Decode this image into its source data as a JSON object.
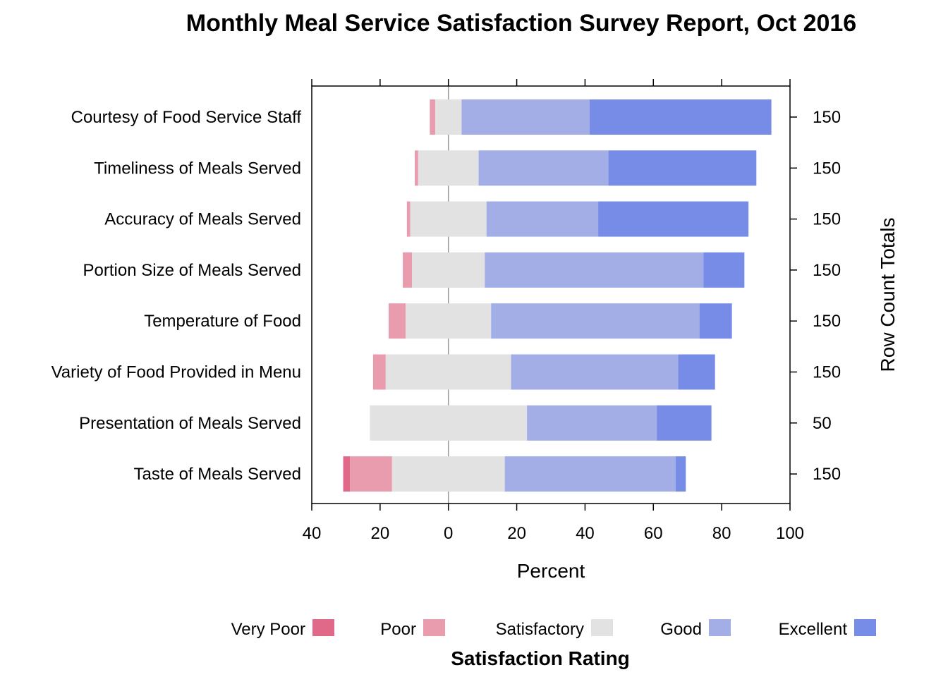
{
  "chart_data": {
    "type": "bar",
    "subtype": "diverging-stacked-horizontal",
    "title": "Monthly Meal Service Satisfaction Survey Report, Oct 2016",
    "xlabel": "Percent",
    "right_axis_label": "Row Count Totals",
    "xlim": [
      -40,
      100
    ],
    "x_ticks": [
      -40,
      -20,
      0,
      20,
      40,
      60,
      80,
      100
    ],
    "x_tick_labels": [
      "40",
      "20",
      "0",
      "20",
      "40",
      "60",
      "80",
      "100"
    ],
    "legend_title": "Satisfaction Rating",
    "legend_position": "bottom",
    "levels": [
      "Very Poor",
      "Poor",
      "Satisfactory",
      "Good",
      "Excellent"
    ],
    "colors": {
      "Very Poor": "#E0698A",
      "Poor": "#E89CAE",
      "Satisfactory": "#E2E2E2",
      "Good": "#A2AEE5",
      "Excellent": "#778CE6",
      "zero_line": "#999999"
    },
    "categories": [
      "Courtesy of Food Service Staff",
      "Timeliness of Meals Served",
      "Accuracy of Meals Served",
      "Portion Size of Meals Served",
      "Temperature of Food",
      "Variety of Food Provided in Menu",
      "Presentation of Meals Served",
      "Taste of Meals Served"
    ],
    "row_totals": [
      "150",
      "150",
      "150",
      "150",
      "150",
      "150",
      "50",
      "150"
    ],
    "series": [
      {
        "name": "Very Poor",
        "values": [
          0.0,
          0.0,
          0.0,
          0.0,
          0.0,
          0.0,
          0.0,
          2.0
        ]
      },
      {
        "name": "Poor",
        "values": [
          1.6,
          1.0,
          1.0,
          2.7,
          5.0,
          3.7,
          0.0,
          12.3
        ]
      },
      {
        "name": "Satisfactory",
        "values": [
          7.7,
          17.7,
          22.3,
          21.3,
          25.0,
          36.7,
          46.0,
          33.0
        ]
      },
      {
        "name": "Good",
        "values": [
          37.5,
          38.0,
          32.7,
          64.0,
          61.0,
          48.9,
          38.0,
          50.0
        ]
      },
      {
        "name": "Excellent",
        "values": [
          53.2,
          43.3,
          44.0,
          12.0,
          9.5,
          10.8,
          16.0,
          3.0
        ]
      }
    ]
  }
}
